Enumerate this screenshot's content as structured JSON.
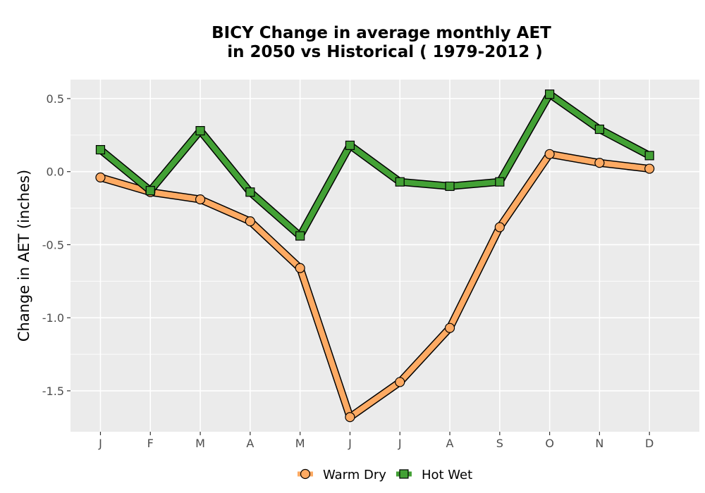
{
  "chart_data": {
    "type": "line",
    "title_line1": "BICY  Change in average monthly AET",
    "title_line2": "in 2050 vs Historical ( 1979-2012 )",
    "xlabel": "",
    "ylabel": "Change in AET (inches)",
    "categories": [
      "J",
      "F",
      "M",
      "A",
      "M",
      "J",
      "J",
      "A",
      "S",
      "O",
      "N",
      "D"
    ],
    "y_ticks": [
      0.5,
      0.0,
      -0.5,
      -1.0,
      -1.5
    ],
    "y_tick_labels": [
      "0.5",
      "0.0",
      "-0.5",
      "-1.0",
      "-1.5"
    ],
    "ylim": [
      -1.78,
      0.63
    ],
    "grid": true,
    "legend_position": "bottom",
    "series": [
      {
        "name": "Warm Dry",
        "marker": "circle",
        "color": "#FDAA63",
        "values": [
          -0.04,
          -0.14,
          -0.19,
          -0.34,
          -0.66,
          -1.68,
          -1.44,
          -1.07,
          -0.38,
          0.12,
          0.06,
          0.02
        ]
      },
      {
        "name": "Hot Wet",
        "marker": "square",
        "color": "#43A135",
        "values": [
          0.15,
          -0.13,
          0.28,
          -0.14,
          -0.44,
          0.18,
          -0.07,
          -0.1,
          -0.07,
          0.53,
          0.29,
          0.11
        ]
      }
    ]
  }
}
